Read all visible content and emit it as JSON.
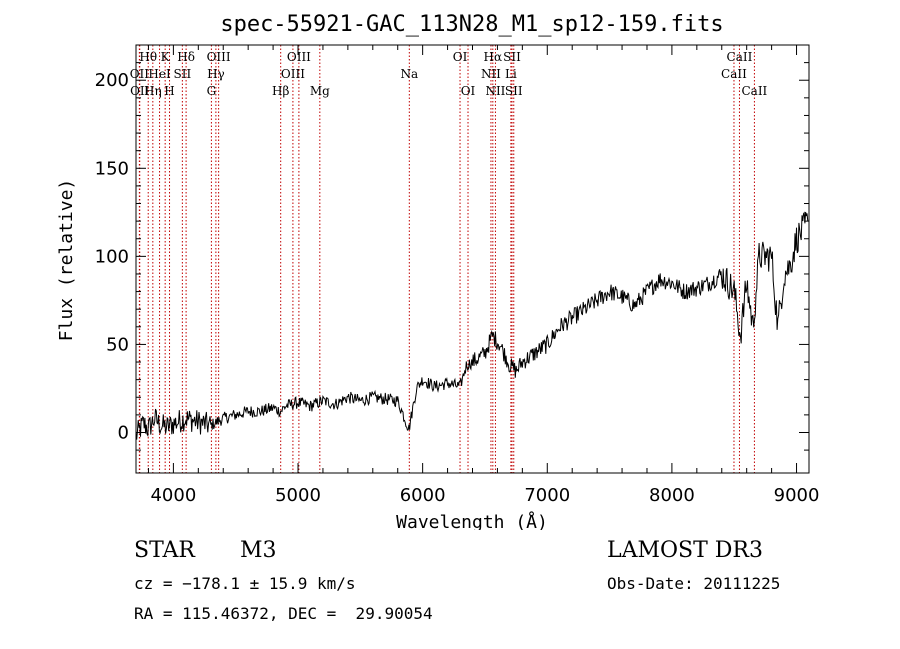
{
  "chart_data": {
    "type": "line",
    "title": "spec-55921-GAC_113N28_M1_sp12-159.fits",
    "xlabel": "Wavelength (Å)",
    "ylabel": "Flux (relative)",
    "xlim": [
      3700,
      9100
    ],
    "ylim": [
      -23,
      220
    ],
    "xticks": [
      4000,
      5000,
      6000,
      7000,
      8000,
      9000
    ],
    "xtick_labels": [
      "4000",
      "5000",
      "6000",
      "7000",
      "8000",
      "9000"
    ],
    "yticks": [
      0,
      50,
      100,
      150,
      200
    ],
    "ytick_labels": [
      "0",
      "50",
      "100",
      "150",
      "200"
    ],
    "series": [
      {
        "name": "flux",
        "x": [
          3700,
          3760,
          3800,
          3850,
          3900,
          3950,
          4000,
          4100,
          4200,
          4300,
          4400,
          4500,
          4600,
          4700,
          4800,
          4860,
          4900,
          5000,
          5100,
          5200,
          5300,
          5400,
          5500,
          5600,
          5700,
          5800,
          5890,
          5950,
          6000,
          6100,
          6200,
          6300,
          6350,
          6400,
          6500,
          6560,
          6620,
          6700,
          6750,
          6800,
          6900,
          7000,
          7100,
          7200,
          7300,
          7400,
          7500,
          7600,
          7700,
          7800,
          7900,
          8000,
          8100,
          8200,
          8300,
          8400,
          8500,
          8550,
          8600,
          8650,
          8700,
          8800,
          8850,
          8900,
          8950,
          9000,
          9050,
          9090
        ],
        "y": [
          -2,
          5,
          2,
          8,
          4,
          3,
          5,
          8,
          6,
          4,
          8,
          10,
          12,
          12,
          14,
          12,
          15,
          17,
          15,
          18,
          16,
          20,
          18,
          20,
          19,
          18,
          2,
          25,
          30,
          26,
          28,
          26,
          38,
          40,
          45,
          55,
          50,
          38,
          35,
          40,
          45,
          50,
          60,
          65,
          70,
          75,
          80,
          77,
          72,
          80,
          87,
          85,
          80,
          82,
          85,
          90,
          80,
          55,
          85,
          60,
          100,
          100,
          60,
          90,
          95,
          110,
          115,
          120
        ]
      }
    ],
    "spectral_lines": [
      {
        "name": "Hθ",
        "wavelength": 3798,
        "row": 0
      },
      {
        "name": "OII",
        "wavelength": 3727,
        "row": 1
      },
      {
        "name": "OII",
        "wavelength": 3730,
        "row": 2
      },
      {
        "name": "K",
        "wavelength": 3934,
        "row": 0
      },
      {
        "name": "HeI",
        "wavelength": 3889,
        "row": 1
      },
      {
        "name": "Hη",
        "wavelength": 3835,
        "row": 2
      },
      {
        "name": "Hδ",
        "wavelength": 4102,
        "row": 0
      },
      {
        "name": "SII",
        "wavelength": 4072,
        "row": 1
      },
      {
        "name": "H",
        "wavelength": 3969,
        "row": 2
      },
      {
        "name": "OIII",
        "wavelength": 4363,
        "row": 0
      },
      {
        "name": "Hγ",
        "wavelength": 4341,
        "row": 1
      },
      {
        "name": "G",
        "wavelength": 4305,
        "row": 2
      },
      {
        "name": "OIII",
        "wavelength": 5007,
        "row": 0
      },
      {
        "name": "OIII",
        "wavelength": 4959,
        "row": 1
      },
      {
        "name": "Hβ",
        "wavelength": 4861,
        "row": 2
      },
      {
        "name": "Mg",
        "wavelength": 5175,
        "row": 2
      },
      {
        "name": "Na",
        "wavelength": 5893,
        "row": 1
      },
      {
        "name": "OI",
        "wavelength": 6300,
        "row": 0
      },
      {
        "name": "OI",
        "wavelength": 6364,
        "row": 2
      },
      {
        "name": "Hα",
        "wavelength": 6563,
        "row": 0
      },
      {
        "name": "NII",
        "wavelength": 6548,
        "row": 1
      },
      {
        "name": "NII",
        "wavelength": 6584,
        "row": 2
      },
      {
        "name": "SII",
        "wavelength": 6717,
        "row": 0
      },
      {
        "name": "Li",
        "wavelength": 6708,
        "row": 1
      },
      {
        "name": "SII",
        "wavelength": 6731,
        "row": 2
      },
      {
        "name": "CaII",
        "wavelength": 8542,
        "row": 0
      },
      {
        "name": "CaII",
        "wavelength": 8498,
        "row": 1
      },
      {
        "name": "CaII",
        "wavelength": 8662,
        "row": 2
      }
    ],
    "line_color": "#000000",
    "marker_color": "#c00000"
  },
  "info": {
    "class": "STAR",
    "subclass": "M3",
    "survey": "LAMOST DR3",
    "cz": "cz = −178.1 ± 15.9 km/s",
    "obs_date": "Obs-Date: 20111225",
    "coords": "RA = 115.46372, DEC =  29.90054"
  }
}
